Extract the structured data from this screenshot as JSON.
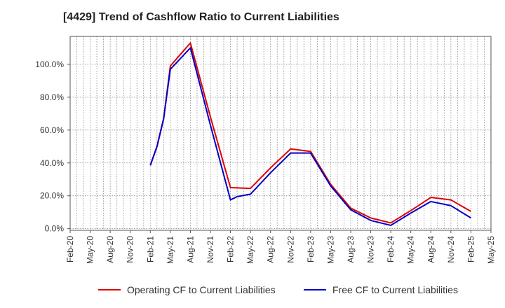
{
  "chart_data": {
    "type": "line",
    "title": "[4429]  Trend of Cashflow Ratio to Current Liabilities",
    "xlabel": "",
    "ylabel": "",
    "x": [
      "Feb-20",
      "Mar-20",
      "Apr-20",
      "May-20",
      "Jun-20",
      "Jul-20",
      "Aug-20",
      "Sep-20",
      "Oct-20",
      "Nov-20",
      "Dec-20",
      "Jan-21",
      "Feb-21",
      "Mar-21",
      "Apr-21",
      "May-21",
      "Jun-21",
      "Jul-21",
      "Aug-21",
      "Sep-21",
      "Oct-21",
      "Nov-21",
      "Dec-21",
      "Jan-22",
      "Feb-22",
      "Mar-22",
      "Apr-22",
      "May-22",
      "Jun-22",
      "Jul-22",
      "Aug-22",
      "Sep-22",
      "Oct-22",
      "Nov-22",
      "Dec-22",
      "Jan-23",
      "Feb-23",
      "Mar-23",
      "Apr-23",
      "May-23",
      "Jun-23",
      "Jul-23",
      "Aug-23",
      "Sep-23",
      "Oct-23",
      "Nov-23",
      "Dec-23",
      "Jan-24",
      "Feb-24",
      "Mar-24",
      "Apr-24",
      "May-24",
      "Jun-24",
      "Jul-24",
      "Aug-24",
      "Sep-24",
      "Oct-24",
      "Nov-24",
      "Dec-24",
      "Jan-25",
      "Feb-25",
      "Mar-25",
      "Apr-25",
      "May-25"
    ],
    "xtick_labels": [
      "Feb-20",
      "May-20",
      "Aug-20",
      "Nov-20",
      "Feb-21",
      "May-21",
      "Aug-21",
      "Nov-21",
      "Feb-22",
      "May-22",
      "Aug-22",
      "Nov-22",
      "Feb-23",
      "May-23",
      "Aug-23",
      "Nov-23",
      "Feb-24",
      "May-24",
      "Aug-24",
      "Nov-24",
      "Feb-25",
      "May-25"
    ],
    "yticks": [
      0,
      20,
      40,
      60,
      80,
      100
    ],
    "ytick_labels": [
      "0.0%",
      "20.0%",
      "40.0%",
      "60.0%",
      "80.0%",
      "100.0%"
    ],
    "ylim": [
      -1,
      117
    ],
    "grid": true,
    "legend_position": "bottom",
    "series": [
      {
        "name": "Operating CF to Current Liabilities",
        "color": "#e00000",
        "points": [
          [
            "Feb-21",
            38.5
          ],
          [
            "Mar-21",
            50.0
          ],
          [
            "Apr-21",
            67.0
          ],
          [
            "May-21",
            99.0
          ],
          [
            "Aug-21",
            113.0
          ],
          [
            "Nov-21",
            68.0
          ],
          [
            "Feb-22",
            25.0
          ],
          [
            "May-22",
            24.5
          ],
          [
            "Aug-22",
            37.0
          ],
          [
            "Nov-22",
            48.5
          ],
          [
            "Feb-23",
            47.0
          ],
          [
            "May-23",
            27.0
          ],
          [
            "Aug-23",
            12.5
          ],
          [
            "Nov-23",
            6.5
          ],
          [
            "Feb-24",
            3.5
          ],
          [
            "May-24",
            11.0
          ],
          [
            "Aug-24",
            19.0
          ],
          [
            "Nov-24",
            17.5
          ],
          [
            "Feb-25",
            10.5
          ]
        ]
      },
      {
        "name": "Free CF to Current Liabilities",
        "color": "#0000cc",
        "points": [
          [
            "Feb-21",
            38.5
          ],
          [
            "Mar-21",
            50.0
          ],
          [
            "Apr-21",
            67.0
          ],
          [
            "May-21",
            97.0
          ],
          [
            "Aug-21",
            110.0
          ],
          [
            "Nov-21",
            63.0
          ],
          [
            "Feb-22",
            17.5
          ],
          [
            "Mar-22",
            19.5
          ],
          [
            "May-22",
            21.0
          ],
          [
            "Aug-22",
            34.0
          ],
          [
            "Nov-22",
            46.0
          ],
          [
            "Feb-23",
            46.0
          ],
          [
            "May-23",
            26.0
          ],
          [
            "Aug-23",
            11.5
          ],
          [
            "Nov-23",
            5.0
          ],
          [
            "Feb-24",
            2.0
          ],
          [
            "May-24",
            9.5
          ],
          [
            "Aug-24",
            16.5
          ],
          [
            "Nov-24",
            14.0
          ],
          [
            "Feb-25",
            6.5
          ]
        ]
      }
    ]
  }
}
